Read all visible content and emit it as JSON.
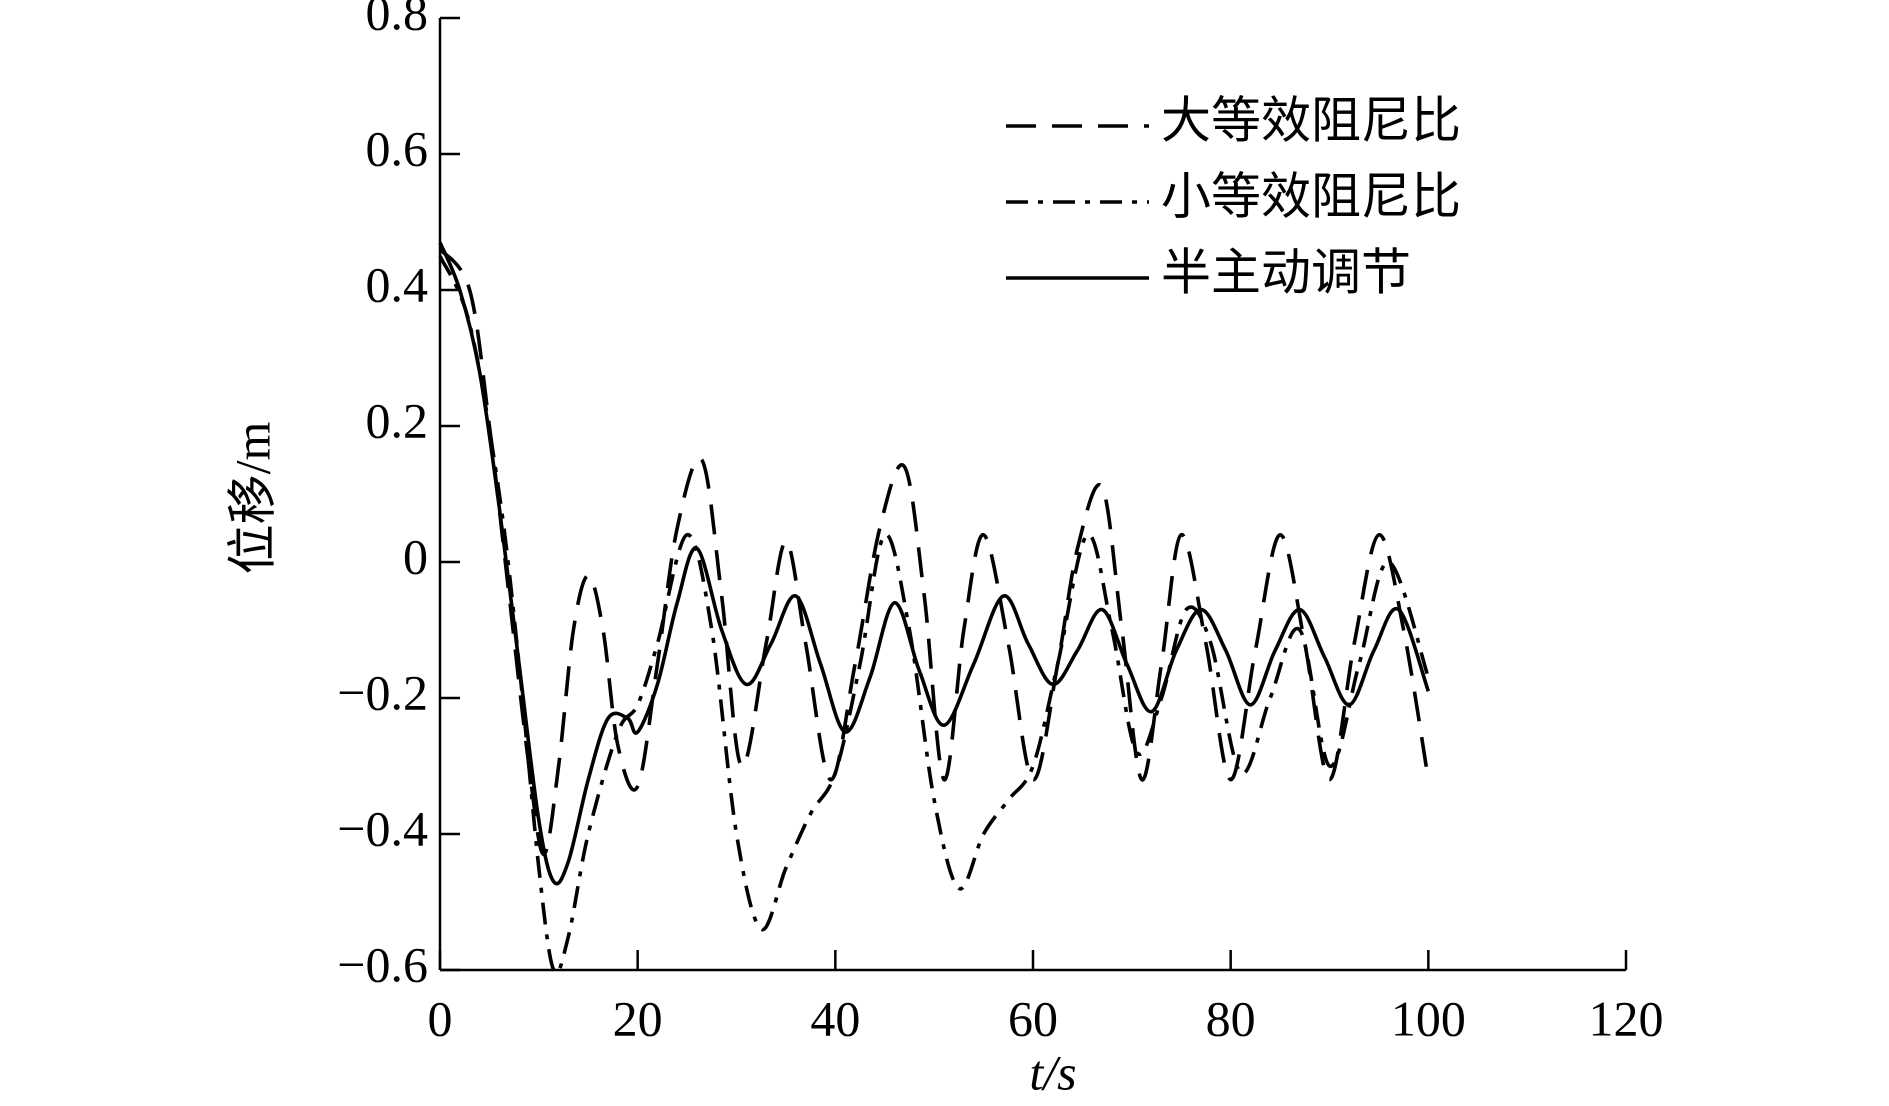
{
  "chart_data": {
    "type": "line",
    "xlabel": "t/s",
    "ylabel": "位移/m",
    "xlim": [
      0,
      120
    ],
    "ylim": [
      -0.6,
      0.8
    ],
    "xticks": [
      0,
      20,
      40,
      60,
      80,
      100,
      120
    ],
    "yticks": [
      0.8,
      0.6,
      0.4,
      0.2,
      0,
      {
        "value": -0.2,
        "label": "−0.2"
      },
      {
        "value": -0.4,
        "label": "−0.4"
      },
      {
        "value": -0.6,
        "label": "−0.6"
      }
    ],
    "legend": "upper right",
    "series": [
      {
        "name": "大等效阻尼比",
        "color": "#000000",
        "dash": "dashed",
        "x": [
          0,
          3,
          5,
          7,
          9,
          10.5,
          12,
          13.5,
          15,
          16.5,
          18,
          20,
          22,
          24,
          26.5,
          28.5,
          30.5,
          33,
          35,
          37,
          39.5,
          42,
          44.5,
          47,
          49,
          51,
          53,
          55,
          57.5,
          60,
          62.5,
          64.5,
          67,
          69,
          71,
          73,
          75,
          77.5,
          80,
          82.5,
          85,
          87.5,
          90,
          92.5,
          95,
          97.5,
          100
        ],
        "values": [
          0.46,
          0.4,
          0.2,
          -0.05,
          -0.3,
          -0.43,
          -0.3,
          -0.1,
          -0.02,
          -0.1,
          -0.27,
          -0.33,
          -0.15,
          0.05,
          0.15,
          -0.05,
          -0.3,
          -0.12,
          0.03,
          -0.12,
          -0.32,
          -0.15,
          0.05,
          0.14,
          -0.05,
          -0.32,
          -0.1,
          0.04,
          -0.12,
          -0.32,
          -0.15,
          0.02,
          0.11,
          -0.1,
          -0.32,
          -0.15,
          0.04,
          -0.12,
          -0.32,
          -0.13,
          0.04,
          -0.12,
          -0.32,
          -0.12,
          0.04,
          -0.1,
          -0.32
        ]
      },
      {
        "name": "小等效阻尼比",
        "color": "#000000",
        "dash": "dashdot",
        "x": [
          0,
          3,
          6,
          8,
          10,
          11.5,
          13,
          15,
          18,
          20,
          22,
          25,
          27.5,
          30,
          32.5,
          35,
          37.5,
          40,
          42.5,
          45,
          47.5,
          50,
          52.5,
          55,
          57.5,
          60,
          62.5,
          65.5,
          68,
          70.5,
          73,
          75.5,
          78,
          81,
          84,
          87,
          90,
          93,
          96,
          100
        ],
        "values": [
          0.45,
          0.35,
          0.1,
          -0.15,
          -0.45,
          -0.6,
          -0.55,
          -0.4,
          -0.25,
          -0.21,
          -0.12,
          0.04,
          -0.1,
          -0.4,
          -0.54,
          -0.45,
          -0.37,
          -0.31,
          -0.15,
          0.04,
          -0.1,
          -0.35,
          -0.48,
          -0.4,
          -0.35,
          -0.3,
          -0.15,
          0.04,
          -0.1,
          -0.28,
          -0.2,
          -0.07,
          -0.12,
          -0.31,
          -0.2,
          -0.1,
          -0.3,
          -0.15,
          0,
          -0.17
        ]
      },
      {
        "name": "半主动调节",
        "color": "#000000",
        "dash": "solid",
        "x": [
          0,
          2,
          4,
          6,
          8,
          10,
          11.5,
          13,
          15,
          17,
          19,
          20,
          22,
          24,
          26,
          28.5,
          31,
          33.5,
          36,
          38.5,
          41,
          43.5,
          46,
          48.5,
          51,
          54,
          57,
          59.5,
          62,
          64.5,
          67,
          69.5,
          72,
          74.5,
          77,
          79.5,
          82,
          84.5,
          87,
          89.5,
          92,
          94.5,
          97,
          100
        ],
        "values": [
          0.47,
          0.4,
          0.28,
          0.08,
          -0.15,
          -0.38,
          -0.47,
          -0.44,
          -0.32,
          -0.23,
          -0.23,
          -0.25,
          -0.18,
          -0.06,
          0.02,
          -0.1,
          -0.18,
          -0.12,
          -0.05,
          -0.15,
          -0.25,
          -0.17,
          -0.06,
          -0.16,
          -0.24,
          -0.15,
          -0.05,
          -0.12,
          -0.18,
          -0.13,
          -0.07,
          -0.15,
          -0.22,
          -0.13,
          -0.07,
          -0.13,
          -0.21,
          -0.13,
          -0.07,
          -0.14,
          -0.21,
          -0.13,
          -0.07,
          -0.19
        ]
      }
    ]
  }
}
